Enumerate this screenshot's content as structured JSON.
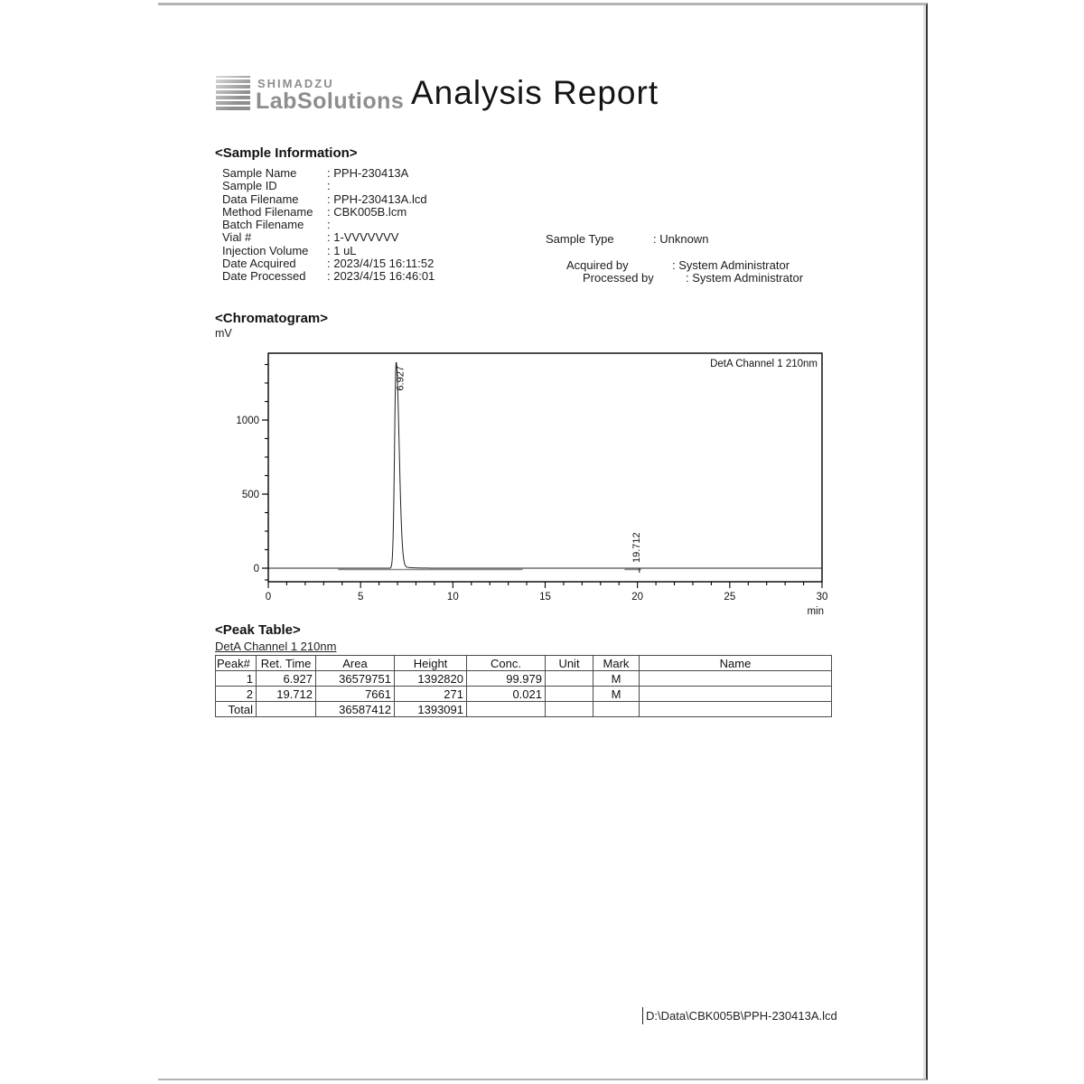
{
  "header": {
    "brand_top": "SHIMADZU",
    "brand_bottom": "LabSolutions",
    "title": "Analysis Report"
  },
  "sample_information": {
    "heading": "<Sample Information>",
    "left_rows": [
      {
        "label": "Sample Name",
        "value": "PPH-230413A"
      },
      {
        "label": "Sample ID",
        "value": ""
      },
      {
        "label": "Data Filename",
        "value": "PPH-230413A.lcd"
      },
      {
        "label": "Method Filename",
        "value": "CBK005B.lcm"
      },
      {
        "label": "Batch Filename",
        "value": ""
      },
      {
        "label": "Vial #",
        "value": "1-VVVVVVV"
      },
      {
        "label": "Injection Volume",
        "value": "1 uL"
      },
      {
        "label": "Date Acquired",
        "value": "2023/4/15 16:11:52"
      },
      {
        "label": "Date Processed",
        "value": "2023/4/15 16:46:01"
      }
    ],
    "right_rows": [
      {
        "label": "Sample Type",
        "value": "Unknown"
      },
      {
        "label": "Acquired by",
        "value": "System Administrator"
      },
      {
        "label": "Processed by",
        "value": "System Administrator"
      }
    ]
  },
  "chromatogram": {
    "heading": "<Chromatogram>",
    "y_axis_unit": "mV"
  },
  "chart_data": {
    "type": "line",
    "title": "DetA Channel 1 210nm",
    "xlabel": "min",
    "ylabel": "mV",
    "xlim": [
      0,
      30
    ],
    "ylim": [
      -91,
      1451
    ],
    "x_ticks_major": [
      0,
      5,
      10,
      15,
      20,
      25,
      30
    ],
    "x_tick_minor_interval": 1,
    "y_ticks_major": [
      0,
      500,
      1000
    ],
    "y_tick_minor_interval": 125,
    "grid": false,
    "legend_position": "inside-top-right",
    "baseline_mv": 0,
    "peaks": [
      {
        "retention_time": 6.927,
        "height_mv": 1392.8,
        "label": "6.927"
      },
      {
        "retention_time": 19.712,
        "height_mv": 0.3,
        "label": "19.712"
      }
    ],
    "integration_regions": [
      [
        3.78,
        13.78
      ],
      [
        19.3,
        20.2
      ]
    ],
    "event_marks_min": [
      20.1
    ]
  },
  "peak_table": {
    "heading": "<Peak Table>",
    "channel_label": "DetA Channel 1 210nm",
    "columns": [
      "Peak#",
      "Ret. Time",
      "Area",
      "Height",
      "Conc.",
      "Unit",
      "Mark",
      "Name"
    ],
    "rows": [
      [
        "1",
        "6.927",
        "36579751",
        "1392820",
        "99.979",
        "",
        "M",
        ""
      ],
      [
        "2",
        "19.712",
        "7661",
        "271",
        "0.021",
        "",
        "M",
        ""
      ],
      [
        "Total",
        "",
        "36587412",
        "1393091",
        "",
        "",
        "",
        ""
      ]
    ]
  },
  "footer": {
    "file_path": "D:\\Data\\CBK005B\\PPH-230413A.lcd"
  }
}
